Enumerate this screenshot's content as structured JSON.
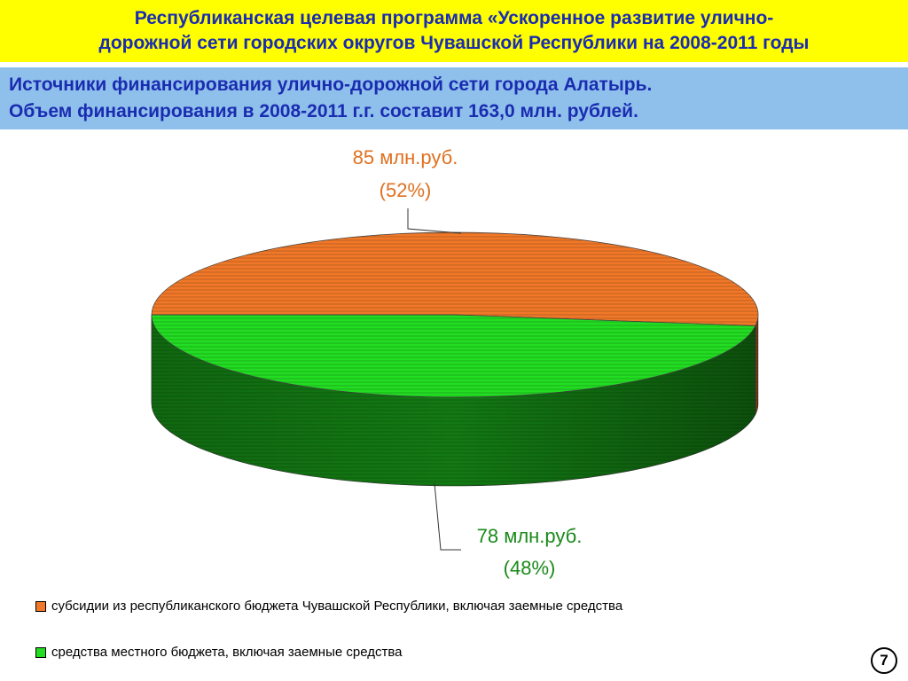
{
  "header": {
    "title_line1": "Республиканская целевая программа «Ускоренное развитие улично-",
    "title_line2": "дорожной сети городских округов Чувашской Республики на 2008-2011 годы",
    "subtitle_line1": "Источники финансирования улично-дорожной сети города Алатырь.",
    "subtitle_line2": "Объем финансирования в 2008-2011 г.г. составит 163,0 млн. рублей."
  },
  "chart_data": {
    "type": "pie",
    "style": "3d",
    "slices": [
      {
        "label": "субсидии из республиканского бюджета Чувашской Республики, включая заемные средства",
        "value": 85,
        "value_label": "85 млн.руб.",
        "percent_label": "(52%)",
        "color": "#f07828"
      },
      {
        "label": "средства местного бюджета, включая заемные средства",
        "value": 78,
        "value_label": "78 млн.руб.",
        "percent_label": "(48%)",
        "color": "#22dd22"
      }
    ],
    "legend_position": "bottom"
  },
  "colors": {
    "title_bg": "#ffff00",
    "subtitle_bg": "#8fc0ec",
    "title_text": "#1a2cb0",
    "label_orange": "#e07020",
    "label_green": "#1a8a1a"
  },
  "page": {
    "number": "7"
  }
}
